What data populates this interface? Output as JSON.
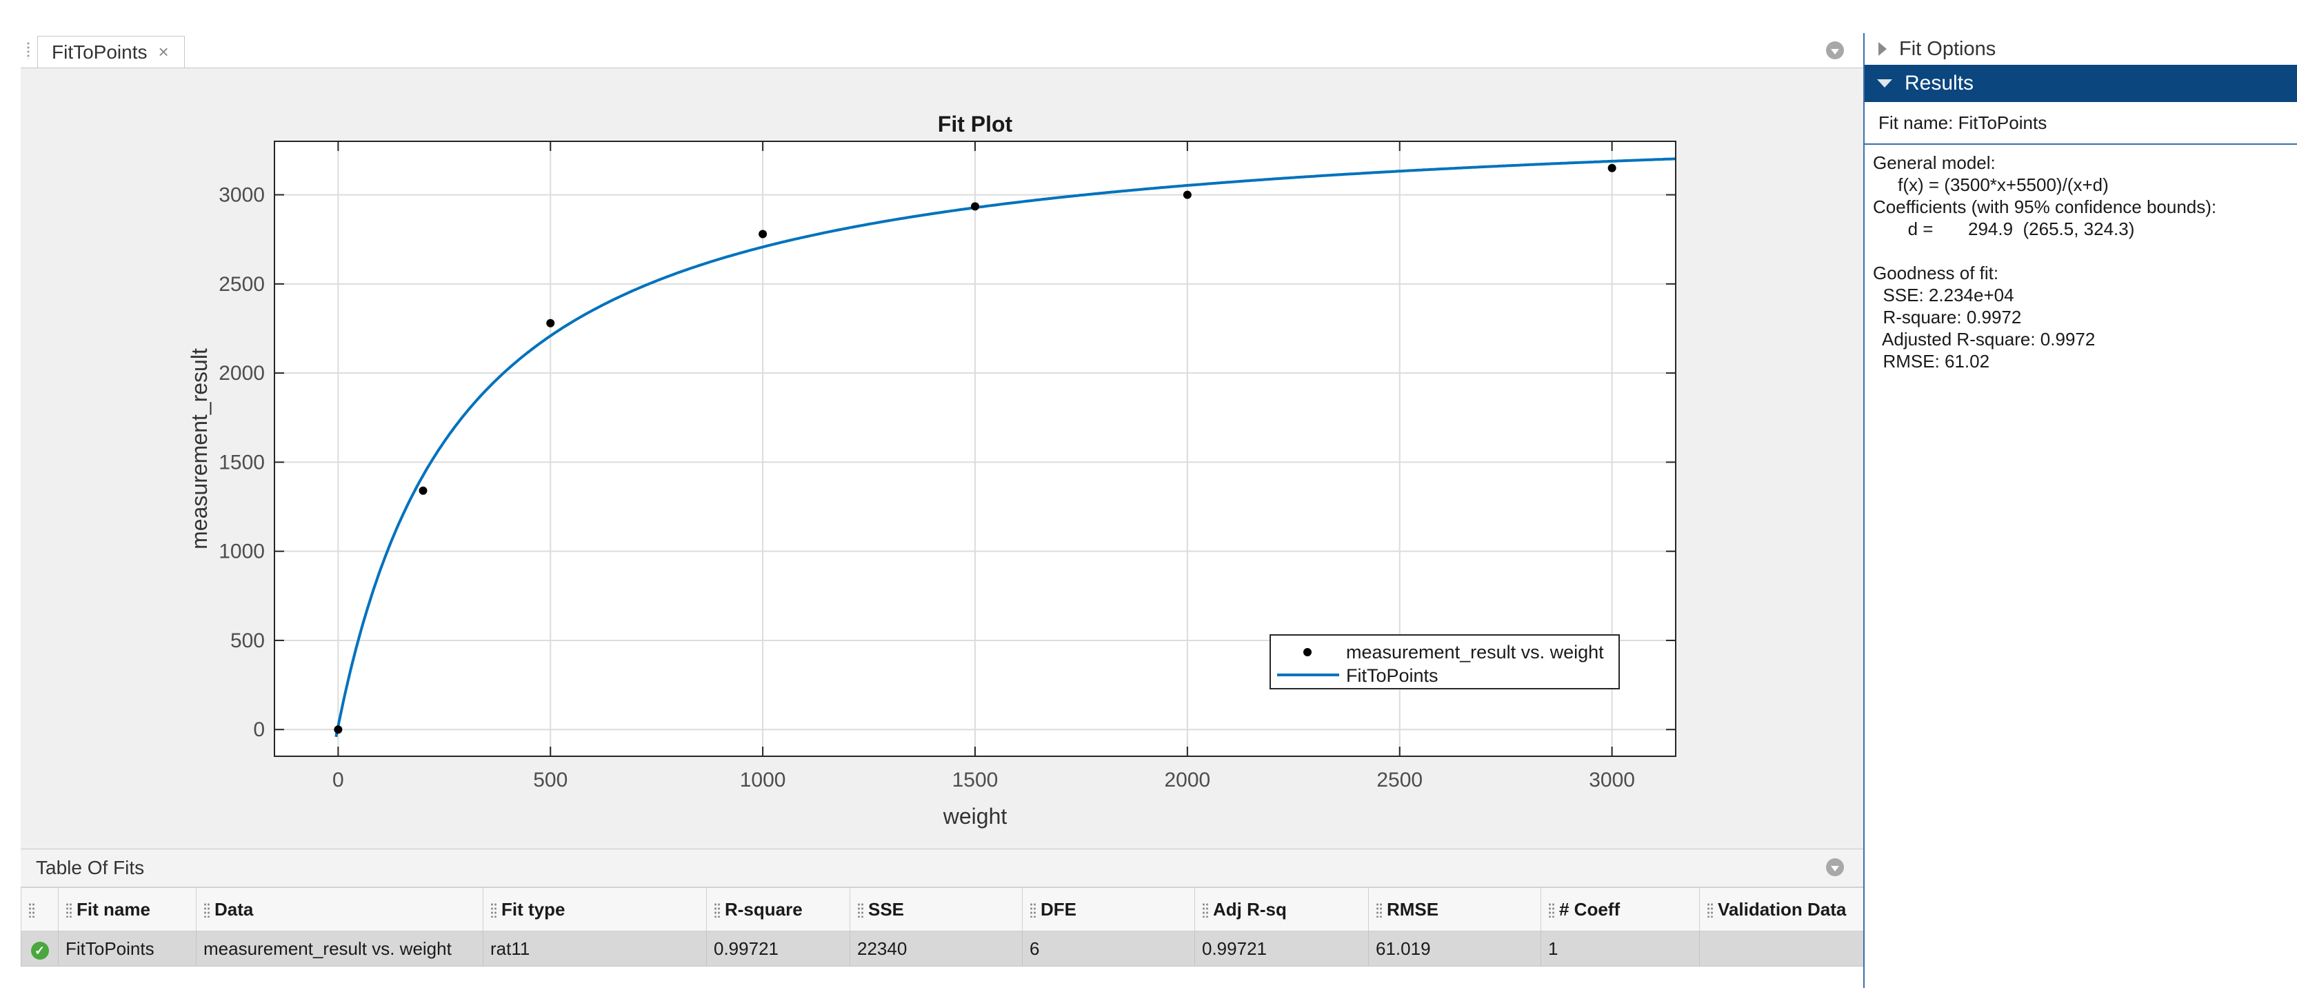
{
  "document_tab": {
    "title": "FitToPoints",
    "close_glyph": "×"
  },
  "chart_data": {
    "type": "scatter",
    "title": "Fit Plot",
    "xlabel": "weight",
    "ylabel": "measurement_result",
    "xlim": [
      -150,
      3150
    ],
    "ylim": [
      -150,
      3300
    ],
    "xticks": [
      0,
      500,
      1000,
      1500,
      2000,
      2500,
      3000
    ],
    "yticks": [
      0,
      500,
      1000,
      1500,
      2000,
      2500,
      3000
    ],
    "grid": true,
    "legend_position": "lower-right",
    "series": [
      {
        "name": "measurement_result vs. weight",
        "kind": "points",
        "color": "#000000",
        "x": [
          0,
          200,
          500,
          1000,
          1500,
          2000,
          3000
        ],
        "y": [
          0,
          1340,
          2280,
          2780,
          2935,
          3000,
          3150
        ]
      },
      {
        "name": "FitToPoints",
        "kind": "line",
        "color": "#0072bd",
        "formula": "(3500*x+5500)/(x+d)",
        "d": 294.9
      }
    ]
  },
  "table_of_fits": {
    "title": "Table Of Fits",
    "columns": [
      "Fit name",
      "Data",
      "Fit type",
      "R-square",
      "SSE",
      "DFE",
      "Adj R-sq",
      "RMSE",
      "# Coeff",
      "Validation Data"
    ],
    "rows": [
      {
        "status": "ok",
        "cells": [
          "FitToPoints",
          "measurement_result vs. weight",
          "rat11",
          "0.99721",
          "22340",
          "6",
          "0.99721",
          "61.019",
          "1",
          ""
        ]
      }
    ]
  },
  "right_panel": {
    "fit_options_label": "Fit Options",
    "results_label": "Results",
    "fit_name_line": "Fit name: FitToPoints",
    "results_text": "General model:\n     f(x) = (3500*x+5500)/(x+d)\nCoefficients (with 95% confidence bounds):\n       d =       294.9  (265.5, 324.3)\n\nGoodness of fit:\n  SSE: 2.234e+04\n  R-square: 0.9972\n  Adjusted R-square: 0.9972\n  RMSE: 61.02"
  }
}
